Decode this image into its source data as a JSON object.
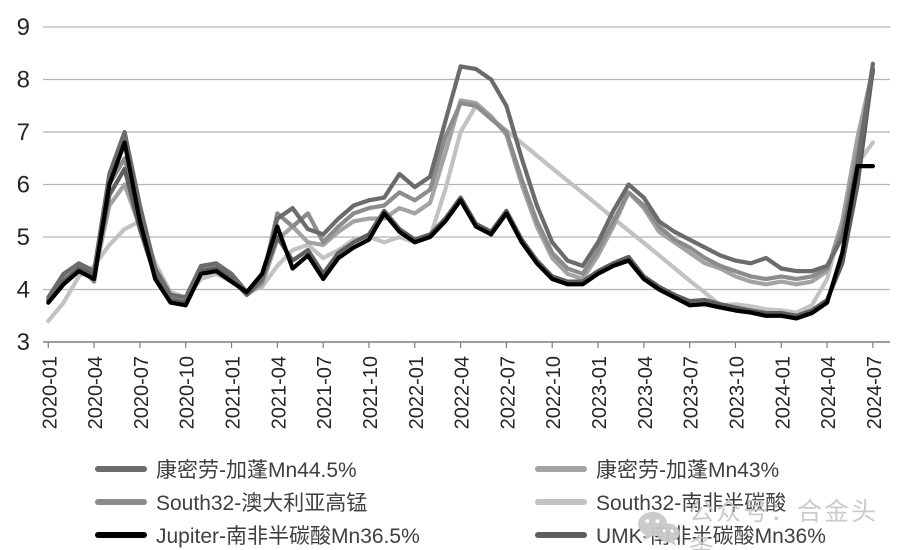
{
  "chart_data": {
    "type": "line",
    "title": "",
    "xlabel": "",
    "ylabel": "",
    "ylim": [
      3,
      9
    ],
    "y_ticks": [
      3,
      4,
      5,
      6,
      7,
      8,
      9
    ],
    "grid": true,
    "legend_position": "bottom",
    "x_tick_labels": [
      "2020-01",
      "2020-04",
      "2020-07",
      "2020-10",
      "2021-01",
      "2021-04",
      "2021-07",
      "2021-10",
      "2022-01",
      "2022-04",
      "2022-07",
      "2022-10",
      "2023-01",
      "2023-04",
      "2023-07",
      "2023-10",
      "2024-01",
      "2024-04",
      "2024-07"
    ],
    "x": [
      "2020-01",
      "2020-02",
      "2020-03",
      "2020-04",
      "2020-05",
      "2020-06",
      "2020-07",
      "2020-08",
      "2020-09",
      "2020-10",
      "2020-11",
      "2020-12",
      "2021-01",
      "2021-02",
      "2021-03",
      "2021-04",
      "2021-05",
      "2021-06",
      "2021-07",
      "2021-08",
      "2021-09",
      "2021-10",
      "2021-11",
      "2021-12",
      "2022-01",
      "2022-02",
      "2022-03",
      "2022-04",
      "2022-05",
      "2022-06",
      "2022-07",
      "2022-08",
      "2022-09",
      "2022-10",
      "2022-11",
      "2022-12",
      "2023-01",
      "2023-02",
      "2023-03",
      "2023-04",
      "2023-05",
      "2023-06",
      "2023-07",
      "2023-08",
      "2023-09",
      "2023-10",
      "2023-11",
      "2023-12",
      "2024-01",
      "2024-02",
      "2024-03",
      "2024-04",
      "2024-05",
      "2024-06",
      "2024-07"
    ],
    "series": [
      {
        "name": "康密劳-加蓬Mn44.5%",
        "color": "#6b6b6b",
        "values": [
          3.85,
          4.3,
          4.5,
          4.35,
          6.2,
          7.0,
          5.6,
          4.4,
          3.9,
          3.85,
          4.45,
          4.5,
          4.3,
          3.95,
          4.2,
          5.35,
          5.55,
          5.15,
          5.05,
          5.35,
          5.6,
          5.7,
          5.75,
          6.2,
          5.95,
          6.15,
          7.2,
          8.25,
          8.2,
          8.0,
          7.5,
          6.5,
          5.6,
          4.9,
          4.55,
          4.45,
          4.9,
          5.5,
          6.0,
          5.75,
          5.3,
          5.1,
          4.95,
          4.8,
          4.65,
          4.55,
          4.5,
          4.6,
          4.4,
          4.35,
          4.35,
          4.45,
          5.0,
          6.4,
          8.3
        ]
      },
      {
        "name": "康密劳-加蓬Mn43%",
        "color": "#a3a3a3",
        "values": [
          3.75,
          4.2,
          4.4,
          4.25,
          5.6,
          6.0,
          5.2,
          4.25,
          3.8,
          3.75,
          4.35,
          4.4,
          4.2,
          3.9,
          4.1,
          4.95,
          5.2,
          4.9,
          4.85,
          5.1,
          5.3,
          5.35,
          5.35,
          5.55,
          5.45,
          5.65,
          6.6,
          7.6,
          7.55,
          7.3,
          6.95,
          6.0,
          5.2,
          4.6,
          4.3,
          4.2,
          4.65,
          5.2,
          5.85,
          5.55,
          5.1,
          4.9,
          4.7,
          4.5,
          4.4,
          4.25,
          4.15,
          4.1,
          4.15,
          4.1,
          4.15,
          4.35,
          5.3,
          6.9,
          8.2
        ]
      },
      {
        "name": "South32-澳大利亚高锰",
        "color": "#8c8c8c",
        "values": [
          3.8,
          4.25,
          4.45,
          4.15,
          6.0,
          6.5,
          5.35,
          4.3,
          3.85,
          3.8,
          4.4,
          4.45,
          4.25,
          3.9,
          4.15,
          5.45,
          5.2,
          5.45,
          4.9,
          5.2,
          5.45,
          5.55,
          5.6,
          5.85,
          5.7,
          5.9,
          6.9,
          7.55,
          7.5,
          7.25,
          7.0,
          6.1,
          5.3,
          4.7,
          4.4,
          4.3,
          4.75,
          5.3,
          5.85,
          5.6,
          5.2,
          4.95,
          4.8,
          4.6,
          4.45,
          4.35,
          4.25,
          4.2,
          4.25,
          4.2,
          4.25,
          4.4,
          5.15,
          6.6,
          8.15
        ]
      },
      {
        "name": "South32-南非半碳酸",
        "color": "#c2c2c2",
        "values": [
          3.4,
          3.75,
          4.25,
          4.45,
          4.85,
          5.15,
          5.3,
          4.5,
          3.95,
          3.85,
          4.2,
          4.3,
          4.15,
          3.95,
          4.05,
          4.45,
          4.75,
          4.85,
          4.6,
          4.75,
          4.95,
          5.0,
          4.9,
          5.0,
          4.9,
          5.0,
          5.9,
          7.0,
          7.5,
          7.26,
          7.03,
          6.79,
          6.55,
          6.31,
          6.07,
          5.84,
          5.6,
          5.36,
          5.12,
          4.89,
          4.65,
          4.41,
          4.17,
          3.94,
          3.7,
          3.72,
          3.68,
          3.62,
          3.6,
          3.56,
          3.7,
          4.2,
          5.3,
          6.4,
          6.8
        ]
      },
      {
        "name": "Jupiter-南非半碳酸Mn36.5%",
        "color": "#000000",
        "values": [
          3.75,
          4.1,
          4.35,
          4.2,
          6.0,
          6.8,
          5.3,
          4.2,
          3.75,
          3.7,
          4.3,
          4.35,
          4.15,
          3.95,
          4.3,
          5.2,
          4.4,
          4.65,
          4.2,
          4.6,
          4.8,
          4.95,
          5.45,
          5.1,
          4.9,
          5.0,
          5.3,
          5.7,
          5.2,
          5.05,
          5.45,
          4.9,
          4.5,
          4.2,
          4.1,
          4.1,
          4.3,
          4.45,
          4.55,
          4.2,
          4.0,
          3.85,
          3.7,
          3.72,
          3.66,
          3.6,
          3.56,
          3.5,
          3.5,
          3.45,
          3.55,
          3.75,
          4.7,
          6.35,
          6.35
        ]
      },
      {
        "name": "UMK-南非半碳酸Mn36%",
        "color": "#5e5e5e",
        "values": [
          3.8,
          4.15,
          4.4,
          4.3,
          5.8,
          6.3,
          5.15,
          4.25,
          3.8,
          3.75,
          4.35,
          4.4,
          4.2,
          3.9,
          4.2,
          5.0,
          4.55,
          4.75,
          4.3,
          4.7,
          4.9,
          5.05,
          5.5,
          5.15,
          4.95,
          5.05,
          5.35,
          5.75,
          5.25,
          5.1,
          5.5,
          4.95,
          4.55,
          4.25,
          4.15,
          4.15,
          4.35,
          4.5,
          4.62,
          4.25,
          4.05,
          3.9,
          3.78,
          3.8,
          3.72,
          3.66,
          3.6,
          3.55,
          3.55,
          3.5,
          3.6,
          3.8,
          4.5,
          6.0,
          8.2
        ]
      }
    ]
  },
  "watermark": {
    "text": "公众号：合金头条",
    "color": "#c9c9c9"
  }
}
